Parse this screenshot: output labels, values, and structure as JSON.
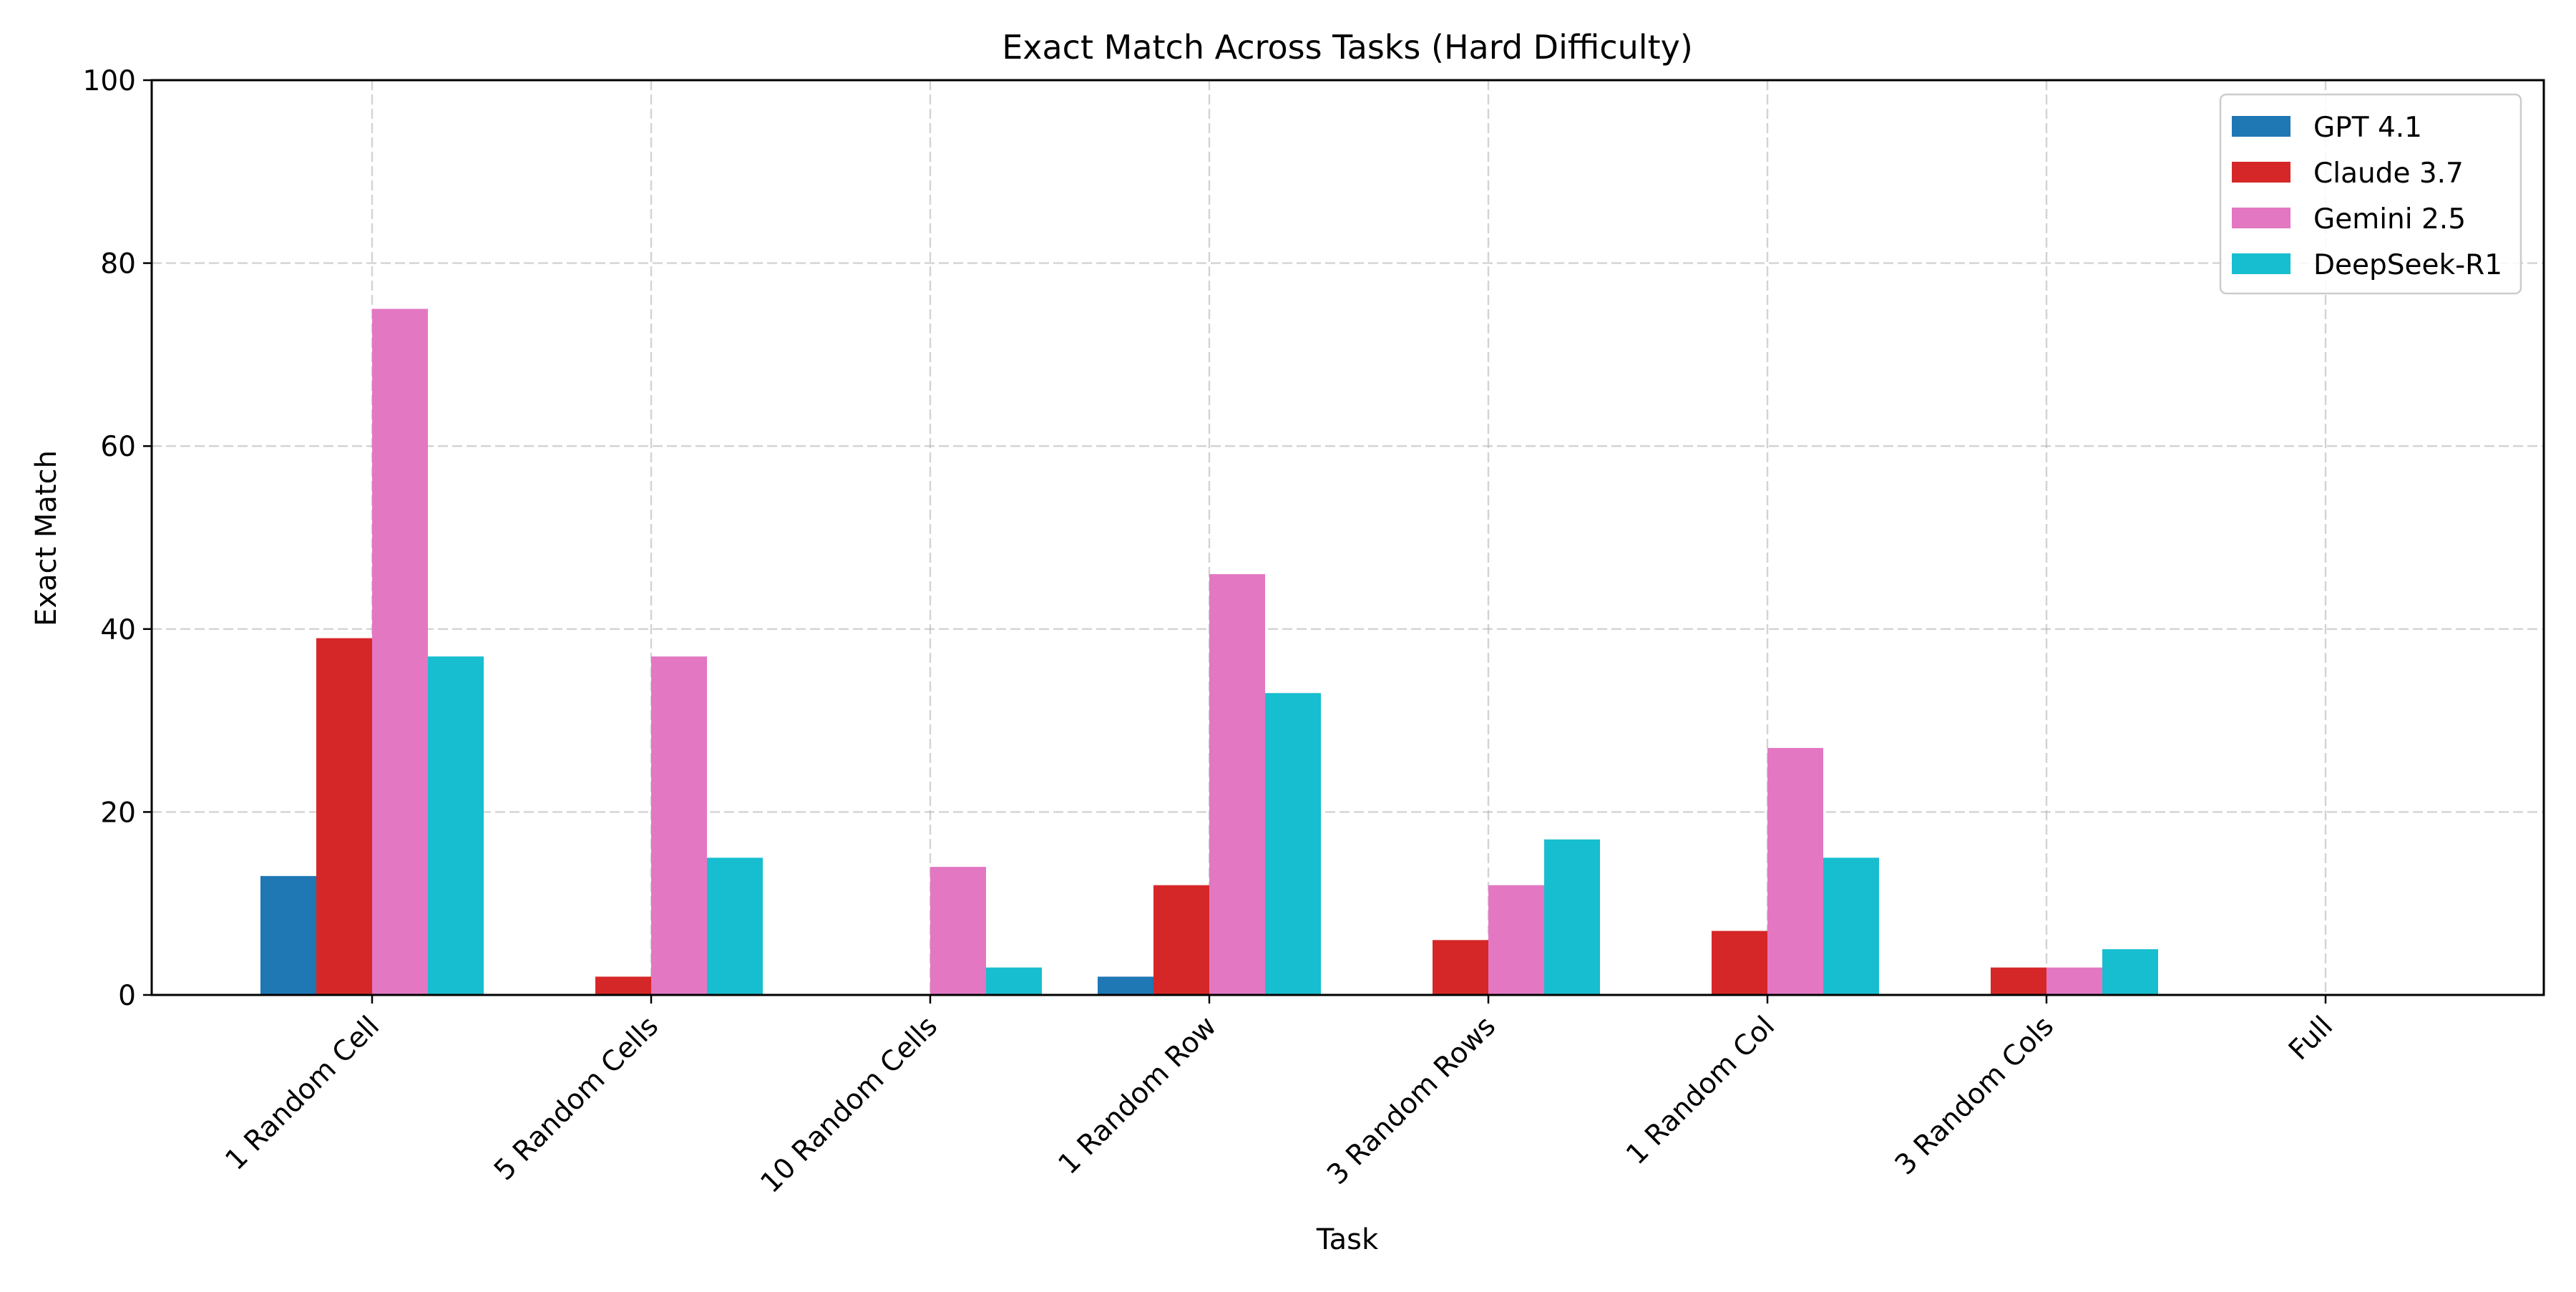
{
  "chart_data": {
    "type": "bar",
    "title": "Exact Match Across Tasks (Hard Difficulty)",
    "xlabel": "Task",
    "ylabel": "Exact Match",
    "ylim": [
      0,
      100
    ],
    "yticks": [
      0,
      20,
      40,
      60,
      80,
      100
    ],
    "grid": true,
    "legend_position": "top-right",
    "categories": [
      "1 Random Cell",
      "5 Random Cells",
      "10 Random Cells",
      "1 Random Row",
      "3 Random Rows",
      "1 Random Col",
      "3 Random Cols",
      "Full"
    ],
    "series": [
      {
        "name": "GPT 4.1",
        "color": "#1f77b4",
        "values": [
          13,
          0,
          0,
          2,
          0,
          0,
          0,
          0
        ]
      },
      {
        "name": "Claude 3.7",
        "color": "#d62728",
        "values": [
          39,
          2,
          0,
          12,
          6,
          7,
          3,
          0
        ]
      },
      {
        "name": "Gemini 2.5",
        "color": "#e377c2",
        "values": [
          75,
          37,
          14,
          46,
          12,
          27,
          3,
          0
        ]
      },
      {
        "name": "DeepSeek-R1",
        "color": "#17becf",
        "values": [
          37,
          15,
          3,
          33,
          17,
          15,
          5,
          0
        ]
      }
    ]
  }
}
